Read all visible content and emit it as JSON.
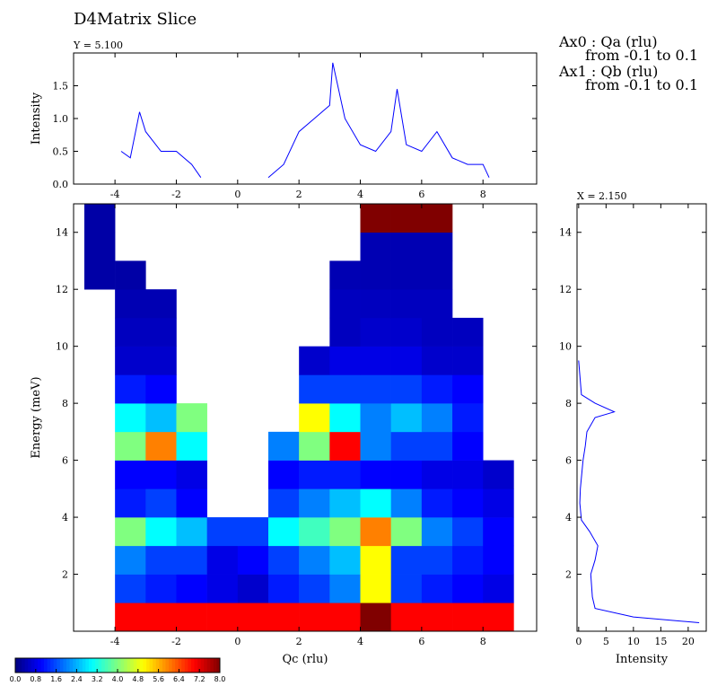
{
  "chart_data": [
    {
      "type": "line",
      "title": "Y = 5.100",
      "ylabel": "Intensity",
      "color": "#0000ff",
      "x": [
        -3.8,
        -3.5,
        -3.2,
        -3.0,
        -2.5,
        -2.0,
        -1.5,
        -1.2,
        0,
        1.0,
        1.5,
        2.0,
        2.5,
        3.0,
        3.1,
        3.5,
        4.0,
        4.5,
        5.0,
        5.2,
        5.5,
        6.0,
        6.5,
        7.0,
        7.5,
        8.0,
        8.2
      ],
      "values": [
        0.5,
        0.4,
        1.1,
        0.8,
        0.5,
        0.5,
        0.3,
        0.1,
        null,
        0.1,
        0.3,
        0.8,
        1.0,
        1.2,
        1.85,
        1.0,
        0.6,
        0.5,
        0.8,
        1.45,
        0.6,
        0.5,
        0.8,
        0.4,
        0.3,
        0.3,
        0.1
      ],
      "xlim": [
        -5.35,
        9.75
      ],
      "xticks": [
        -4,
        -2,
        0,
        2,
        4,
        6,
        8
      ],
      "ylim": [
        0,
        2.0
      ],
      "yticks": [
        {
          "value": 0,
          "label": "0.0"
        },
        0.5,
        {
          "value": 1,
          "label": "1.0"
        },
        1.5
      ]
    },
    {
      "type": "heatmap",
      "title": "D4Matrix Slice",
      "xlabel": "Qc (rlu)",
      "ylabel": "Energy (meV)",
      "annotations": [
        "Ax0 : Qa (rlu)",
        "from -0.1 to 0.1",
        "Ax1 : Qb (rlu)",
        "from -0.1 to 0.1"
      ],
      "x_edges": [
        -5,
        -4,
        -3,
        -2,
        -1,
        0,
        1,
        2,
        3,
        4,
        5,
        6,
        7,
        8,
        9
      ],
      "y_edges": [
        0,
        1,
        2,
        3,
        4,
        5,
        6,
        7,
        8,
        9,
        10,
        11,
        12,
        13,
        14,
        15
      ],
      "values": [
        [
          null,
          7,
          7,
          7,
          7,
          7,
          7,
          7,
          7,
          8,
          7,
          7,
          7,
          7
        ],
        [
          null,
          1.5,
          1.2,
          1.0,
          0.8,
          0.6,
          1.2,
          1.5,
          2,
          5,
          1.5,
          1.2,
          1,
          0.8
        ],
        [
          null,
          2,
          1.5,
          1.5,
          0.8,
          1,
          1.5,
          2,
          2.5,
          5,
          1.5,
          1.5,
          1.2,
          1
        ],
        [
          null,
          4,
          3,
          2.5,
          1.5,
          1.5,
          3,
          3.5,
          4,
          6,
          4,
          2,
          1.5,
          1
        ],
        [
          null,
          1.2,
          1.5,
          1,
          null,
          null,
          1.5,
          2,
          2.5,
          3,
          2,
          1.2,
          1,
          0.8
        ],
        [
          null,
          1,
          1,
          0.8,
          null,
          null,
          1,
          1.2,
          1.2,
          1,
          1,
          0.8,
          0.8,
          0.6
        ],
        [
          null,
          4,
          6,
          3,
          null,
          null,
          2,
          4,
          7,
          2,
          1.5,
          1.5,
          1,
          null
        ],
        [
          null,
          3,
          2.5,
          4,
          null,
          null,
          null,
          5,
          3,
          2,
          2.5,
          2,
          1.2,
          null
        ],
        [
          null,
          1.2,
          1,
          null,
          null,
          null,
          null,
          1.5,
          1.5,
          1.5,
          1.5,
          1.2,
          1,
          null
        ],
        [
          null,
          0.6,
          0.6,
          null,
          null,
          null,
          null,
          0.6,
          0.8,
          0.8,
          0.8,
          0.6,
          0.6,
          null
        ],
        [
          null,
          0.5,
          0.5,
          null,
          null,
          null,
          null,
          null,
          0.5,
          0.6,
          0.6,
          0.5,
          0.5,
          null
        ],
        [
          null,
          0.4,
          0.4,
          null,
          null,
          null,
          null,
          null,
          0.5,
          0.5,
          0.5,
          0.5,
          null,
          null
        ],
        [
          0.3,
          0.3,
          null,
          null,
          null,
          null,
          null,
          null,
          0.4,
          0.4,
          0.4,
          0.4,
          null,
          null
        ],
        [
          0.3,
          null,
          null,
          null,
          null,
          null,
          null,
          null,
          null,
          0.4,
          0.4,
          0.4,
          null,
          null
        ],
        [
          0.3,
          null,
          null,
          null,
          null,
          null,
          null,
          null,
          null,
          8,
          8,
          8,
          null,
          null
        ]
      ],
      "xlim": [
        -5.35,
        9.75
      ],
      "xticks": [
        -4,
        -2,
        0,
        2,
        4,
        6,
        8
      ],
      "ylim": [
        0,
        15
      ],
      "yticks": [
        2,
        4,
        6,
        8,
        10,
        12,
        14
      ],
      "colorbar": {
        "lim": [
          0,
          8
        ],
        "ticks": [
          {
            "value": 0,
            "label": "0.0"
          },
          0.8,
          1.6,
          2.4,
          3.2,
          {
            "value": 4,
            "label": "4.0"
          },
          4.8,
          5.6,
          6.4,
          7.2,
          {
            "value": 8,
            "label": "8.0"
          }
        ]
      }
    },
    {
      "type": "line",
      "orientation": "horizontal",
      "title": "X = 2.150",
      "xlabel": "Intensity",
      "color": "#0000ff",
      "y": [
        0.3,
        0.5,
        0.8,
        1.2,
        2.0,
        2.5,
        3.0,
        3.5,
        3.9,
        4.5,
        5.0,
        6.0,
        6.5,
        7.0,
        7.5,
        7.7,
        8.0,
        8.3,
        9.0,
        9.5
      ],
      "values": [
        22,
        10,
        3,
        2.5,
        2.2,
        3,
        3.5,
        2,
        0.5,
        0.2,
        0.3,
        0.8,
        1.2,
        1.5,
        3,
        6.5,
        3,
        0.5,
        0.2,
        0
      ],
      "xlim": [
        -0.3,
        23.3
      ],
      "xticks": [
        0,
        5,
        10,
        15,
        20
      ],
      "ylim": [
        0,
        15
      ],
      "yticks": [
        2,
        4,
        6,
        8,
        10,
        12,
        14
      ]
    }
  ]
}
